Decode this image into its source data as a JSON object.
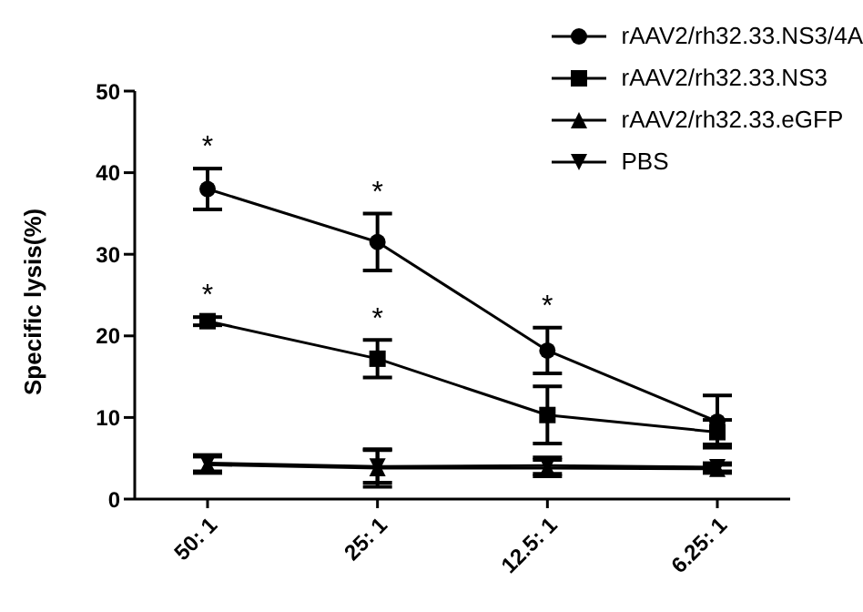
{
  "chart_data": {
    "type": "line",
    "ylabel": "Specific lysis(%)",
    "categories": [
      "50: 1",
      "25: 1",
      "12.5: 1",
      "6.25: 1"
    ],
    "series": [
      {
        "name": "rAAV2/rh32.33.NS3/4A",
        "color": "#000000",
        "marker": "circle",
        "values": [
          38,
          31.5,
          18.2,
          9.5
        ],
        "errors": [
          2.5,
          3.5,
          2.8,
          3.2
        ]
      },
      {
        "name": "rAAV2/rh32.33.NS3",
        "color": "#000000",
        "marker": "square",
        "values": [
          21.8,
          17.2,
          10.3,
          8.2
        ],
        "errors": [
          0.5,
          2.3,
          3.5,
          1.5
        ]
      },
      {
        "name": "rAAV2/rh32.33.eGFP",
        "color": "#000000",
        "marker": "triangle",
        "values": [
          4.2,
          3.8,
          3.8,
          3.7
        ],
        "errors": [
          1,
          2.3,
          1,
          0.5
        ]
      },
      {
        "name": "PBS",
        "color": "#000000",
        "marker": "triangle-down",
        "values": [
          4.4,
          4,
          4.1,
          3.9
        ],
        "errors": [
          1,
          2,
          1,
          0.5
        ]
      }
    ],
    "ylim": [
      0,
      50
    ],
    "yticks": [
      0,
      10,
      20,
      30,
      40,
      50
    ],
    "grid": false,
    "legend": "top right",
    "annotations": [
      {
        "text": "*",
        "x": "50: 1",
        "y": 38
      },
      {
        "text": "*",
        "x": "25: 1",
        "y": 31.5
      },
      {
        "text": "*",
        "x": "12.5: 1",
        "y": 18.2
      },
      {
        "text": "*",
        "x": "50: 1",
        "y": 21.8
      },
      {
        "text": "*",
        "x": "25: 1",
        "y": 17.2
      }
    ]
  }
}
